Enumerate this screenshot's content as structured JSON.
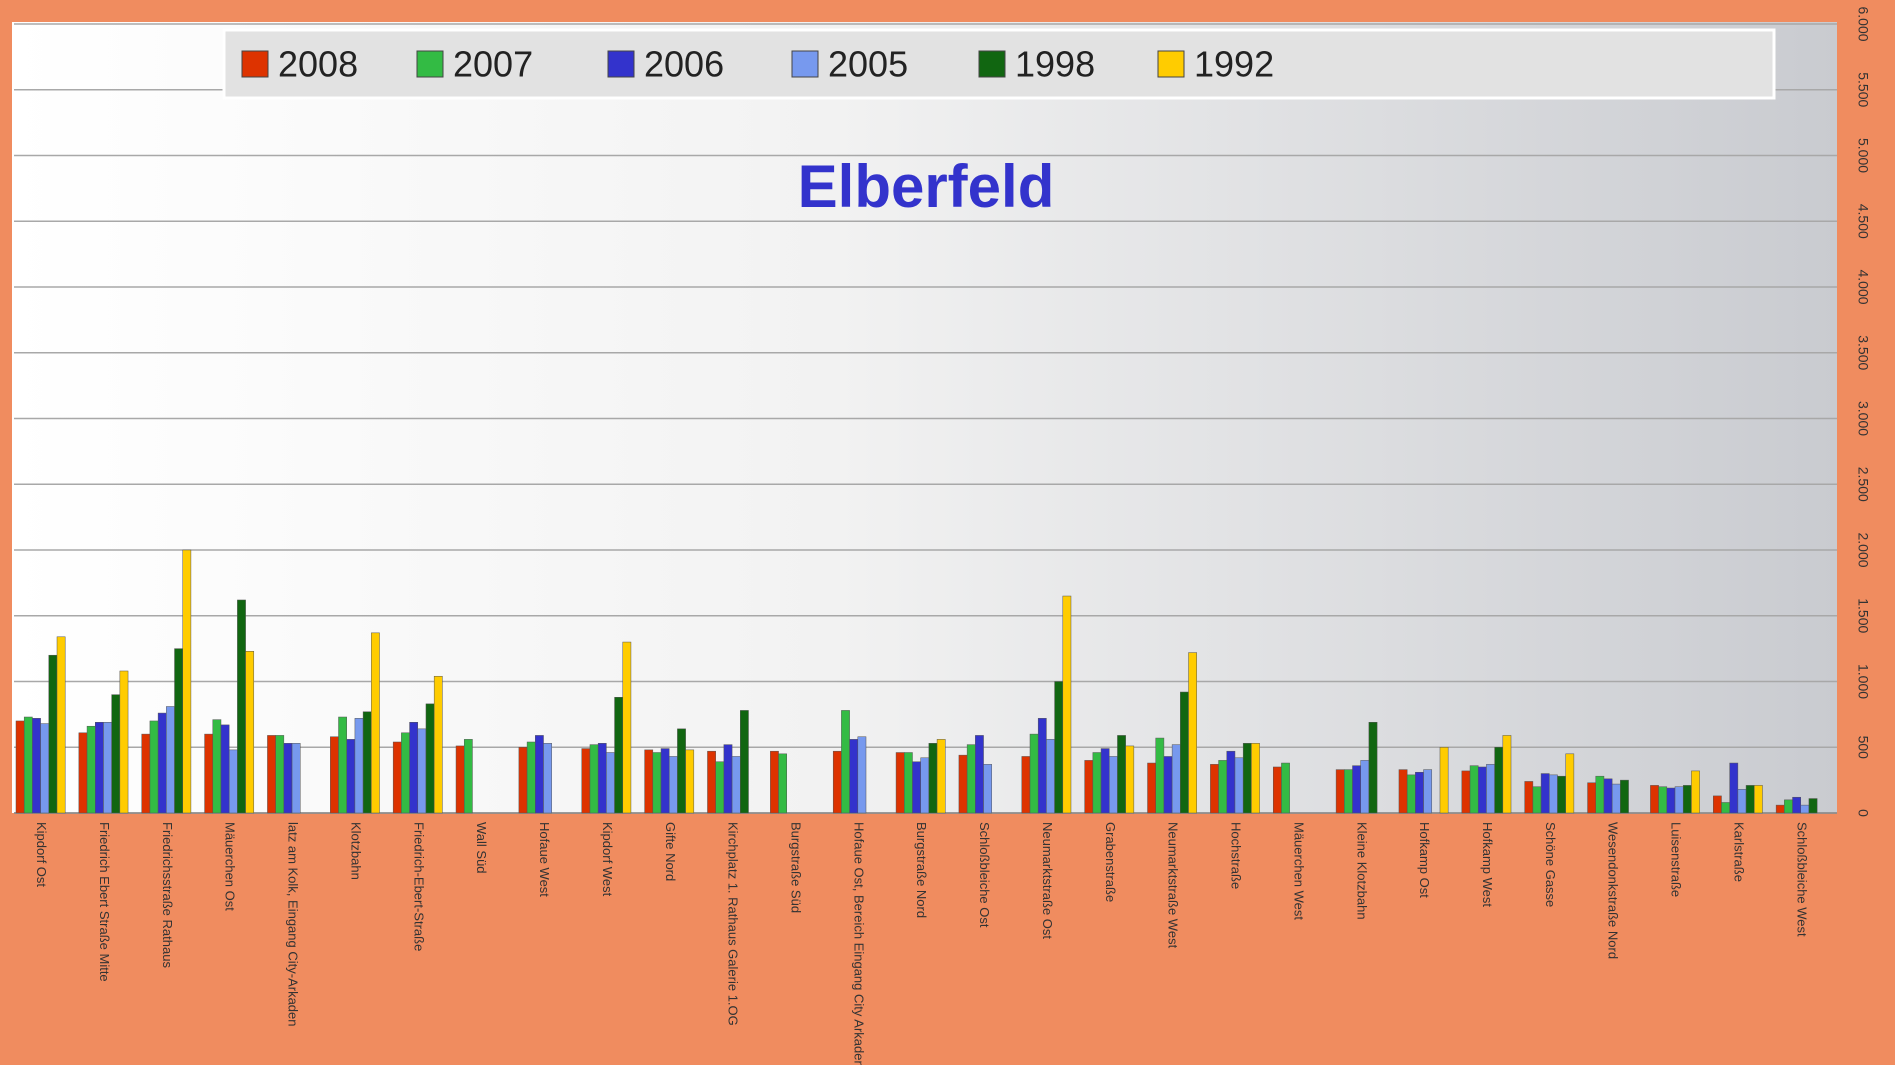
{
  "chart_data": {
    "type": "bar",
    "title": "Elberfeld",
    "categories": [
      "Kipdorf Ost",
      "Friedrich Ebert Straße Mitte",
      "Friedrichsstraße Rathaus",
      "Mäuerchen Ost",
      "latz am Kolk, Eingang City-Arkaden",
      "Klotzbahn",
      "Friedrich-Ebert-Straße",
      "Wall Süd",
      "Hofaue West",
      "Kipdorf West",
      "Gifte Nord",
      "Kirchplatz 1. Rathaus Galerie 1.OG",
      "Burgstraße Süd",
      "Hofaue Ost, Bereich Eingang City Arkaden",
      "Burgstraße Nord",
      "Schloßbleiche Ost",
      "Neumarktstraße Ost",
      "Grabenstraße",
      "Neumarktstraße West",
      "Hochstraße",
      "Mäuerchen West",
      "Kleine Klotzbahn",
      "Hofkamp Ost",
      "Hofkamp West",
      "Schöne Gasse",
      "Wesendonkstraße Nord",
      "Luisenstraße",
      "Karlstraße",
      "Schloßbleiche West"
    ],
    "series": [
      {
        "name": "2008",
        "color": "#dd3300",
        "values": [
          700,
          610,
          600,
          600,
          590,
          580,
          540,
          510,
          500,
          490,
          480,
          470,
          470,
          470,
          460,
          440,
          430,
          400,
          380,
          370,
          350,
          330,
          330,
          320,
          240,
          230,
          210,
          130,
          60
        ]
      },
      {
        "name": "2007",
        "color": "#33bb44",
        "values": [
          730,
          660,
          700,
          710,
          590,
          730,
          610,
          560,
          540,
          520,
          460,
          390,
          450,
          780,
          460,
          520,
          600,
          460,
          570,
          400,
          380,
          330,
          290,
          360,
          200,
          280,
          200,
          80,
          100
        ]
      },
      {
        "name": "2006",
        "color": "#3333cc",
        "values": [
          720,
          690,
          760,
          670,
          530,
          560,
          690,
          null,
          590,
          530,
          490,
          520,
          null,
          560,
          390,
          590,
          720,
          490,
          430,
          470,
          null,
          360,
          310,
          350,
          300,
          260,
          190,
          380,
          120
        ]
      },
      {
        "name": "2005",
        "color": "#7799ee",
        "values": [
          680,
          690,
          810,
          480,
          530,
          720,
          640,
          null,
          530,
          460,
          430,
          430,
          null,
          580,
          420,
          370,
          560,
          430,
          520,
          420,
          null,
          400,
          330,
          370,
          290,
          220,
          200,
          180,
          60
        ]
      },
      {
        "name": "1998",
        "color": "#116611",
        "values": [
          1200,
          900,
          1250,
          1620,
          null,
          770,
          830,
          null,
          null,
          880,
          640,
          780,
          null,
          null,
          530,
          null,
          1000,
          590,
          920,
          530,
          null,
          690,
          null,
          500,
          280,
          250,
          210,
          210,
          110
        ]
      },
      {
        "name": "1992",
        "color": "#ffcc00",
        "values": [
          1340,
          1080,
          2000,
          1230,
          null,
          1370,
          1040,
          null,
          null,
          1300,
          480,
          null,
          null,
          null,
          560,
          null,
          1650,
          510,
          1220,
          530,
          null,
          null,
          500,
          590,
          450,
          null,
          320,
          210,
          null
        ]
      }
    ],
    "ylim": [
      0,
      6000
    ],
    "yticks": [
      0,
      500,
      {
        "value": 1000,
        "label": "1.000"
      },
      {
        "value": 1500,
        "label": "1.500"
      },
      {
        "value": 2000,
        "label": "2.000"
      },
      {
        "value": 2500,
        "label": "2.500"
      },
      {
        "value": 3000,
        "label": "3.000"
      },
      {
        "value": 3500,
        "label": "3.500"
      },
      {
        "value": 4000,
        "label": "4.000"
      },
      {
        "value": 4500,
        "label": "4.500"
      },
      {
        "value": 5000,
        "label": "5.000"
      },
      {
        "value": 5500,
        "label": "5.500"
      },
      {
        "value": 6000,
        "label": "6.000"
      }
    ],
    "grid": true
  }
}
